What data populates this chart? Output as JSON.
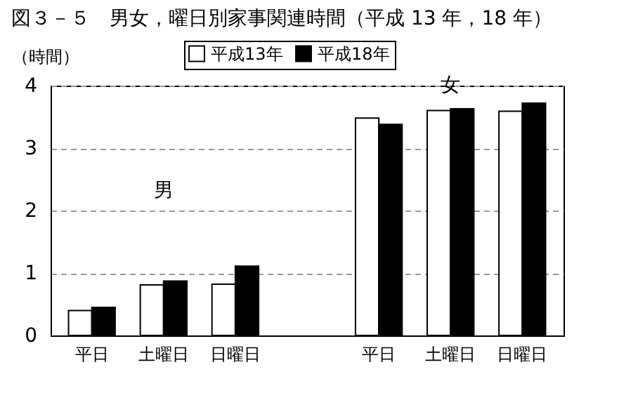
{
  "chart_data": {
    "type": "bar",
    "title": "図３－５　男女，曜日別家事関連時間（平成 13 年，18 年）",
    "ylabel": "（時間）",
    "categories": [
      "平日",
      "土曜日",
      "日曜日",
      null,
      "平日",
      "土曜日",
      "日曜日"
    ],
    "series": [
      {
        "name": "平成13年",
        "color": "#ffffff",
        "values": [
          0.4,
          0.81,
          0.82,
          null,
          3.48,
          3.6,
          3.59
        ]
      },
      {
        "name": "平成18年",
        "color": "#000000",
        "values": [
          0.45,
          0.87,
          1.11,
          null,
          3.38,
          3.63,
          3.72
        ]
      }
    ],
    "ylim": [
      0,
      4
    ],
    "yticks": [
      0,
      1,
      2,
      3,
      4
    ],
    "grid": "y",
    "legend": "top",
    "annotations": [
      "男",
      "女"
    ]
  }
}
